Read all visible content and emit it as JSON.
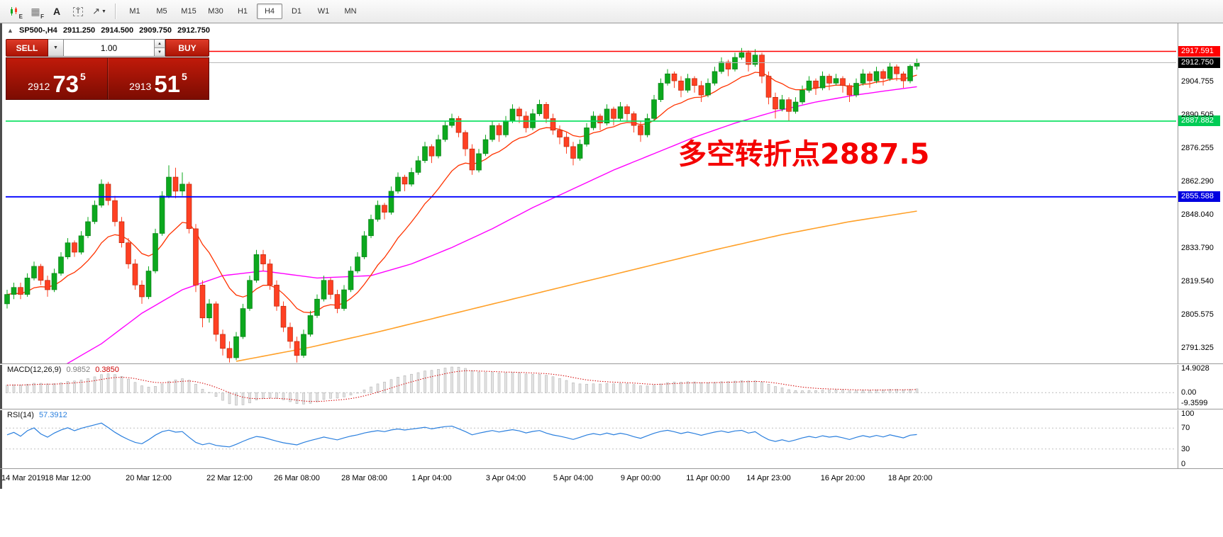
{
  "toolbar": {
    "icons": [
      {
        "name": "candlestick-chart-icon",
        "badge": "E"
      },
      {
        "name": "grid-icon",
        "badge": "F",
        "glyph": "▦"
      },
      {
        "name": "text-annotation-icon",
        "glyph": "A"
      },
      {
        "name": "text-box-icon",
        "glyph": "T"
      },
      {
        "name": "drawing-tools-icon",
        "glyph": "↗",
        "dropdown": "▼"
      }
    ],
    "timeframes": {
      "labels": [
        "M1",
        "M5",
        "M15",
        "M30",
        "H1",
        "H4",
        "D1",
        "W1",
        "MN"
      ],
      "active": "H4"
    }
  },
  "chart": {
    "header": {
      "collapse_icon": "▲",
      "title": "SP500-,H4",
      "open": "2911.250",
      "high": "2914.500",
      "low": "2909.750",
      "close": "2912.750"
    },
    "trade_panel": {
      "sell_label": "SELL",
      "buy_label": "BUY",
      "volume": "1.00",
      "dropdown_icon": "▼",
      "spinner_up": "▲",
      "spinner_down": "▼",
      "bid_prefix": "2912",
      "bid_big": "73",
      "bid_sup": "5",
      "ask_prefix": "2913",
      "ask_big": "51",
      "ask_sup": "5"
    },
    "annotation": {
      "text": "多空转折点2887.5",
      "color": "#f40000"
    },
    "colors": {
      "up": "#0ca81e",
      "up_border": "#067812",
      "down": "#ff4023",
      "down_border": "#b02000",
      "ma_fast": "#ff3300",
      "ma_mid": "#ff00ff",
      "ma_slow": "#ffa028"
    },
    "hlines": [
      {
        "name": "resistance-line",
        "price": 2917.591,
        "label": "2917.591",
        "color": "#ff0000",
        "tag_bg": "#ff0000",
        "width": 1.4
      },
      {
        "name": "current-price-line",
        "price": 2912.75,
        "label": "2912.750",
        "color": "#b8b8b8",
        "tag_bg": "#000000",
        "width": 1
      },
      {
        "name": "pivot-line",
        "price": 2887.882,
        "label": "2887.882",
        "color": "#00e05a",
        "tag_bg": "#00cc55",
        "width": 1.6
      },
      {
        "name": "support-line",
        "price": 2855.588,
        "label": "2855.588",
        "color": "#0000ff",
        "tag_bg": "#0000e0",
        "width": 1.8
      }
    ],
    "y_ticks": [
      {
        "label": "2904.755",
        "value": 2904.755
      },
      {
        "label": "2890.505",
        "value": 2890.505
      },
      {
        "label": "2876.255",
        "value": 2876.255
      },
      {
        "label": "2862.290",
        "value": 2862.29
      },
      {
        "label": "2848.040",
        "value": 2848.04
      },
      {
        "label": "2833.790",
        "value": 2833.79
      },
      {
        "label": "2819.540",
        "value": 2819.54
      },
      {
        "label": "2805.575",
        "value": 2805.575
      },
      {
        "label": "2791.325",
        "value": 2791.325
      }
    ],
    "x_ticks": [
      {
        "label": "14 Mar 2019",
        "i": 0
      },
      {
        "label": "18 Mar 12:00",
        "i": 9
      },
      {
        "label": "20 Mar 12:00",
        "i": 21
      },
      {
        "label": "22 Mar 12:00",
        "i": 33
      },
      {
        "label": "26 Mar 08:00",
        "i": 43
      },
      {
        "label": "28 Mar 08:00",
        "i": 53
      },
      {
        "label": "1 Apr 04:00",
        "i": 63
      },
      {
        "label": "3 Apr 04:00",
        "i": 74
      },
      {
        "label": "5 Apr 04:00",
        "i": 84
      },
      {
        "label": "9 Apr 00:00",
        "i": 94
      },
      {
        "label": "11 Apr 00:00",
        "i": 104
      },
      {
        "label": "14 Apr 23:00",
        "i": 113
      },
      {
        "label": "16 Apr 20:00",
        "i": 124
      },
      {
        "label": "18 Apr 20:00",
        "i": 134
      }
    ],
    "ma_mid": [
      [
        8,
        2783
      ],
      [
        14,
        2793
      ],
      [
        20,
        2806
      ],
      [
        26,
        2816
      ],
      [
        32,
        2822
      ],
      [
        38,
        2824
      ],
      [
        46,
        2821
      ],
      [
        54,
        2822
      ],
      [
        60,
        2827
      ],
      [
        66,
        2834
      ],
      [
        72,
        2842
      ],
      [
        78,
        2851
      ],
      [
        84,
        2859
      ],
      [
        90,
        2867
      ],
      [
        96,
        2874
      ],
      [
        102,
        2881
      ],
      [
        108,
        2887
      ],
      [
        114,
        2892
      ],
      [
        120,
        2896
      ],
      [
        126,
        2899
      ],
      [
        131,
        2901
      ],
      [
        135,
        2902.5
      ]
    ],
    "ma_slow": [
      [
        34,
        2785.5
      ],
      [
        45,
        2791.5
      ],
      [
        55,
        2798
      ],
      [
        65,
        2805
      ],
      [
        75,
        2812
      ],
      [
        85,
        2819
      ],
      [
        95,
        2826
      ],
      [
        105,
        2833
      ],
      [
        115,
        2839.5
      ],
      [
        125,
        2845
      ],
      [
        135,
        2849.5
      ]
    ],
    "candles": [
      [
        2810,
        2816,
        2808,
        2814
      ],
      [
        2814,
        2819,
        2812,
        2817
      ],
      [
        2817,
        2819,
        2812,
        2814
      ],
      [
        2814,
        2823,
        2813,
        2821
      ],
      [
        2821,
        2828,
        2820,
        2826
      ],
      [
        2826,
        2827,
        2818,
        2820
      ],
      [
        2820,
        2822,
        2813,
        2816
      ],
      [
        2816,
        2825,
        2815,
        2823
      ],
      [
        2823,
        2832,
        2822,
        2830
      ],
      [
        2830,
        2838,
        2829,
        2836
      ],
      [
        2836,
        2837,
        2830,
        2832
      ],
      [
        2832,
        2841,
        2831,
        2839
      ],
      [
        2839,
        2847,
        2838,
        2845
      ],
      [
        2845,
        2854,
        2844,
        2852
      ],
      [
        2852,
        2863,
        2851,
        2861
      ],
      [
        2861,
        2862,
        2852,
        2854
      ],
      [
        2854,
        2856,
        2843,
        2845
      ],
      [
        2845,
        2847,
        2834,
        2836
      ],
      [
        2836,
        2838,
        2825,
        2827
      ],
      [
        2827,
        2829,
        2816,
        2818
      ],
      [
        2818,
        2820,
        2810,
        2813
      ],
      [
        2813,
        2826,
        2812,
        2824
      ],
      [
        2824,
        2842,
        2823,
        2840
      ],
      [
        2840,
        2858,
        2839,
        2856
      ],
      [
        2856,
        2869,
        2855,
        2864
      ],
      [
        2864,
        2868,
        2855,
        2858
      ],
      [
        2858,
        2866,
        2856,
        2861
      ],
      [
        2861,
        2862,
        2840,
        2842
      ],
      [
        2842,
        2844,
        2815,
        2818
      ],
      [
        2818,
        2820,
        2800,
        2804
      ],
      [
        2804,
        2812,
        2802,
        2810
      ],
      [
        2810,
        2811,
        2794,
        2797
      ],
      [
        2797,
        2799,
        2788,
        2791
      ],
      [
        2791,
        2794,
        2785,
        2787
      ],
      [
        2787,
        2798,
        2786,
        2796
      ],
      [
        2796,
        2810,
        2795,
        2808
      ],
      [
        2808,
        2822,
        2807,
        2820
      ],
      [
        2820,
        2833,
        2819,
        2831
      ],
      [
        2831,
        2833,
        2824,
        2827
      ],
      [
        2827,
        2829,
        2816,
        2818
      ],
      [
        2818,
        2820,
        2807,
        2809
      ],
      [
        2809,
        2811,
        2798,
        2800
      ],
      [
        2800,
        2802,
        2791,
        2794
      ],
      [
        2794,
        2796,
        2785,
        2788
      ],
      [
        2788,
        2799,
        2787,
        2797
      ],
      [
        2797,
        2807,
        2796,
        2805
      ],
      [
        2805,
        2814,
        2804,
        2812
      ],
      [
        2812,
        2822,
        2811,
        2820
      ],
      [
        2820,
        2821,
        2812,
        2814
      ],
      [
        2814,
        2816,
        2806,
        2808
      ],
      [
        2808,
        2818,
        2807,
        2816
      ],
      [
        2816,
        2826,
        2815,
        2824
      ],
      [
        2824,
        2832,
        2823,
        2830
      ],
      [
        2830,
        2841,
        2829,
        2839
      ],
      [
        2839,
        2848,
        2838,
        2846
      ],
      [
        2846,
        2854,
        2845,
        2852
      ],
      [
        2852,
        2853,
        2846,
        2849
      ],
      [
        2849,
        2860,
        2848,
        2858
      ],
      [
        2858,
        2866,
        2857,
        2864
      ],
      [
        2864,
        2865,
        2858,
        2861
      ],
      [
        2861,
        2868,
        2860,
        2866
      ],
      [
        2866,
        2873,
        2865,
        2871
      ],
      [
        2871,
        2879,
        2870,
        2877
      ],
      [
        2877,
        2878,
        2870,
        2873
      ],
      [
        2873,
        2882,
        2872,
        2880
      ],
      [
        2880,
        2888,
        2879,
        2886
      ],
      [
        2886,
        2891,
        2885,
        2889
      ],
      [
        2889,
        2890,
        2881,
        2883
      ],
      [
        2883,
        2884,
        2873,
        2876
      ],
      [
        2876,
        2878,
        2865,
        2867
      ],
      [
        2867,
        2876,
        2866,
        2874
      ],
      [
        2874,
        2882,
        2873,
        2880
      ],
      [
        2880,
        2888,
        2879,
        2886
      ],
      [
        2886,
        2887,
        2879,
        2882
      ],
      [
        2882,
        2890,
        2881,
        2888
      ],
      [
        2888,
        2895,
        2887,
        2893
      ],
      [
        2893,
        2894,
        2887,
        2890
      ],
      [
        2890,
        2892,
        2883,
        2885
      ],
      [
        2885,
        2893,
        2884,
        2891
      ],
      [
        2891,
        2897,
        2890,
        2895
      ],
      [
        2895,
        2896,
        2887,
        2889
      ],
      [
        2889,
        2891,
        2882,
        2884
      ],
      [
        2884,
        2886,
        2878,
        2881
      ],
      [
        2881,
        2883,
        2874,
        2877
      ],
      [
        2877,
        2879,
        2869,
        2872
      ],
      [
        2872,
        2880,
        2871,
        2878
      ],
      [
        2878,
        2887,
        2877,
        2885
      ],
      [
        2885,
        2892,
        2884,
        2890
      ],
      [
        2890,
        2891,
        2884,
        2887
      ],
      [
        2887,
        2895,
        2886,
        2893
      ],
      [
        2893,
        2894,
        2886,
        2889
      ],
      [
        2889,
        2896,
        2888,
        2894
      ],
      [
        2894,
        2895,
        2888,
        2891
      ],
      [
        2891,
        2892,
        2883,
        2886
      ],
      [
        2886,
        2888,
        2879,
        2882
      ],
      [
        2882,
        2891,
        2881,
        2889
      ],
      [
        2889,
        2899,
        2888,
        2897
      ],
      [
        2897,
        2906,
        2896,
        2904
      ],
      [
        2904,
        2910,
        2903,
        2908
      ],
      [
        2908,
        2909,
        2902,
        2905
      ],
      [
        2905,
        2907,
        2898,
        2901
      ],
      [
        2901,
        2908,
        2900,
        2906
      ],
      [
        2906,
        2907,
        2900,
        2903
      ],
      [
        2903,
        2905,
        2896,
        2899
      ],
      [
        2899,
        2906,
        2898,
        2904
      ],
      [
        2904,
        2911,
        2903,
        2909
      ],
      [
        2909,
        2915,
        2908,
        2913
      ],
      [
        2913,
        2914,
        2907,
        2910
      ],
      [
        2910,
        2917,
        2909,
        2915
      ],
      [
        2915,
        2919,
        2914,
        2917
      ],
      [
        2917,
        2918,
        2909,
        2912
      ],
      [
        2912,
        2918.5,
        2911,
        2916
      ],
      [
        2916,
        2917,
        2904,
        2907
      ],
      [
        2907,
        2909,
        2895,
        2898
      ],
      [
        2898,
        2900,
        2889,
        2893
      ],
      [
        2893,
        2899,
        2892,
        2897
      ],
      [
        2897,
        2898,
        2888,
        2892
      ],
      [
        2892,
        2898,
        2891,
        2896
      ],
      [
        2896,
        2903,
        2895,
        2901
      ],
      [
        2901,
        2907,
        2900,
        2905
      ],
      [
        2905,
        2906,
        2899,
        2902
      ],
      [
        2902,
        2909,
        2901,
        2907
      ],
      [
        2907,
        2908,
        2901,
        2904
      ],
      [
        2904,
        2908,
        2903,
        2906
      ],
      [
        2906,
        2907,
        2900,
        2903
      ],
      [
        2903,
        2904,
        2896,
        2899
      ],
      [
        2899,
        2906,
        2898,
        2904
      ],
      [
        2904,
        2910,
        2903,
        2908
      ],
      [
        2908,
        2909,
        2902,
        2905
      ],
      [
        2905,
        2911,
        2904,
        2909
      ],
      [
        2909,
        2910,
        2903,
        2906
      ],
      [
        2906,
        2913,
        2905,
        2911
      ],
      [
        2911,
        2912,
        2905,
        2908
      ],
      [
        2908,
        2909,
        2902,
        2905
      ],
      [
        2905,
        2912,
        2904,
        2911.25
      ],
      [
        2911.25,
        2914.5,
        2909.75,
        2912.75
      ]
    ]
  },
  "macd": {
    "label": "MACD(12,26,9)",
    "value_main": "0.9852",
    "value_signal": "0.3850",
    "signal_color": "#d40000",
    "histogram_fill": "#e4e4e4",
    "histogram_border": "#a8a8a8",
    "ticks": [
      {
        "label": "14.9028",
        "at": "max"
      },
      {
        "label": "0.00",
        "at": "zero"
      },
      {
        "label": "-9.3599",
        "at": "min"
      }
    ]
  },
  "rsi": {
    "label": "RSI(14)",
    "value": "57.3912",
    "color": "#2a7fde",
    "levels": [
      70,
      30
    ],
    "ticks": [
      {
        "label": "100",
        "value": 100
      },
      {
        "label": "70",
        "value": 70
      },
      {
        "label": "30",
        "value": 30
      },
      {
        "label": "0",
        "value": 0
      }
    ]
  }
}
